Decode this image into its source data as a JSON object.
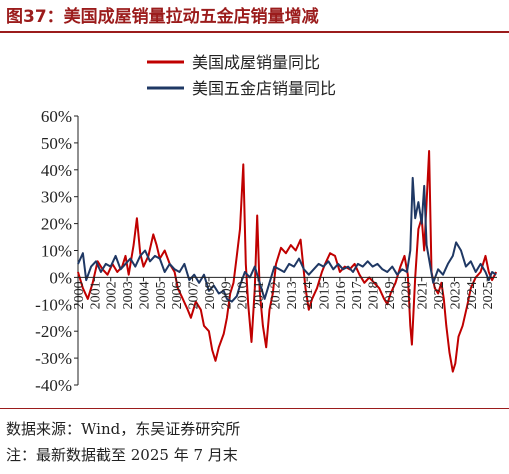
{
  "header": {
    "title": "图37：美国成屋销量拉动五金店销量增减"
  },
  "footer": {
    "source": "数据来源：Wind，东吴证券研究所",
    "note": "注：最新数据截至 2025 年 7 月末"
  },
  "chart_data": {
    "type": "line",
    "title": "图37：美国成屋销量拉动五金店销量增减",
    "xlabel": "",
    "ylabel": "",
    "ylim": [
      -40,
      60
    ],
    "yticks": [
      "60%",
      "50%",
      "40%",
      "30%",
      "20%",
      "10%",
      "0%",
      "-10%",
      "-20%",
      "-30%",
      "-40%"
    ],
    "xlim": [
      2000,
      2025.6
    ],
    "xticks": [
      "2000",
      "2001",
      "2002",
      "2003",
      "2004",
      "2005",
      "2006",
      "2007",
      "2008",
      "2009",
      "2010",
      "2011",
      "2012",
      "2013",
      "2014",
      "2015",
      "2016",
      "2017",
      "2018",
      "2019",
      "2020",
      "2021",
      "2022",
      "2023",
      "2024",
      "2025"
    ],
    "legend_position": "top-center",
    "grid": false,
    "colors": {
      "existing": "#c00000",
      "hardware": "#1f3864"
    },
    "series": [
      {
        "name": "美国成屋销量同比",
        "key": "existing",
        "points": [
          [
            2000.0,
            2
          ],
          [
            2000.3,
            -4
          ],
          [
            2000.6,
            -8
          ],
          [
            2000.9,
            -2
          ],
          [
            2001.2,
            6
          ],
          [
            2001.5,
            3
          ],
          [
            2001.8,
            1
          ],
          [
            2002.1,
            5
          ],
          [
            2002.4,
            2
          ],
          [
            2002.7,
            4
          ],
          [
            2002.9,
            8
          ],
          [
            2003.1,
            1
          ],
          [
            2003.4,
            12
          ],
          [
            2003.6,
            22
          ],
          [
            2003.8,
            9
          ],
          [
            2004.0,
            4
          ],
          [
            2004.3,
            8
          ],
          [
            2004.6,
            16
          ],
          [
            2004.8,
            12
          ],
          [
            2005.0,
            7
          ],
          [
            2005.3,
            10
          ],
          [
            2005.6,
            5
          ],
          [
            2005.9,
            2
          ],
          [
            2006.1,
            -4
          ],
          [
            2006.4,
            -8
          ],
          [
            2006.7,
            -12
          ],
          [
            2006.9,
            -15
          ],
          [
            2007.2,
            -9
          ],
          [
            2007.5,
            -12
          ],
          [
            2007.7,
            -18
          ],
          [
            2008.0,
            -20
          ],
          [
            2008.2,
            -27
          ],
          [
            2008.4,
            -31
          ],
          [
            2008.6,
            -26
          ],
          [
            2008.9,
            -21
          ],
          [
            2009.1,
            -15
          ],
          [
            2009.3,
            -6
          ],
          [
            2009.5,
            -2
          ],
          [
            2009.7,
            8
          ],
          [
            2009.9,
            18
          ],
          [
            2010.1,
            42
          ],
          [
            2010.25,
            5
          ],
          [
            2010.4,
            -10
          ],
          [
            2010.6,
            -24
          ],
          [
            2010.8,
            -4
          ],
          [
            2010.95,
            23
          ],
          [
            2011.1,
            -5
          ],
          [
            2011.3,
            -18
          ],
          [
            2011.5,
            -26
          ],
          [
            2011.7,
            -12
          ],
          [
            2011.9,
            -6
          ],
          [
            2012.1,
            5
          ],
          [
            2012.4,
            11
          ],
          [
            2012.7,
            9
          ],
          [
            2013.0,
            12
          ],
          [
            2013.3,
            10
          ],
          [
            2013.6,
            14
          ],
          [
            2013.9,
            -4
          ],
          [
            2014.1,
            -12
          ],
          [
            2014.3,
            -8
          ],
          [
            2014.6,
            -4
          ],
          [
            2014.9,
            2
          ],
          [
            2015.1,
            5
          ],
          [
            2015.4,
            9
          ],
          [
            2015.7,
            8
          ],
          [
            2016.0,
            2
          ],
          [
            2016.3,
            4
          ],
          [
            2016.6,
            3
          ],
          [
            2016.9,
            5
          ],
          [
            2017.2,
            1
          ],
          [
            2017.5,
            -2
          ],
          [
            2017.8,
            0
          ],
          [
            2018.1,
            -2
          ],
          [
            2018.4,
            -4
          ],
          [
            2018.7,
            -8
          ],
          [
            2018.9,
            -10
          ],
          [
            2019.1,
            -6
          ],
          [
            2019.4,
            -2
          ],
          [
            2019.7,
            4
          ],
          [
            2019.95,
            8
          ],
          [
            2020.15,
            1
          ],
          [
            2020.3,
            -18
          ],
          [
            2020.4,
            -25
          ],
          [
            2020.6,
            0
          ],
          [
            2020.8,
            18
          ],
          [
            2021.0,
            22
          ],
          [
            2021.15,
            10
          ],
          [
            2021.3,
            28
          ],
          [
            2021.45,
            47
          ],
          [
            2021.6,
            2
          ],
          [
            2021.8,
            -4
          ],
          [
            2022.0,
            -6
          ],
          [
            2022.2,
            -2
          ],
          [
            2022.35,
            -8
          ],
          [
            2022.5,
            -18
          ],
          [
            2022.7,
            -28
          ],
          [
            2022.9,
            -35
          ],
          [
            2023.05,
            -32
          ],
          [
            2023.25,
            -22
          ],
          [
            2023.5,
            -18
          ],
          [
            2023.8,
            -10
          ],
          [
            2024.0,
            -4
          ],
          [
            2024.3,
            0
          ],
          [
            2024.6,
            2
          ],
          [
            2024.9,
            8
          ],
          [
            2025.1,
            2
          ],
          [
            2025.3,
            -1
          ],
          [
            2025.55,
            2
          ]
        ]
      },
      {
        "name": "美国五金店销量同比",
        "key": "hardware",
        "points": [
          [
            2000.0,
            5
          ],
          [
            2000.3,
            9
          ],
          [
            2000.5,
            -1
          ],
          [
            2000.8,
            4
          ],
          [
            2001.1,
            6
          ],
          [
            2001.4,
            2
          ],
          [
            2001.7,
            5
          ],
          [
            2002.0,
            4
          ],
          [
            2002.3,
            8
          ],
          [
            2002.6,
            3
          ],
          [
            2002.9,
            5
          ],
          [
            2003.2,
            7
          ],
          [
            2003.5,
            4
          ],
          [
            2003.8,
            8
          ],
          [
            2004.1,
            10
          ],
          [
            2004.4,
            6
          ],
          [
            2004.7,
            8
          ],
          [
            2005.0,
            7
          ],
          [
            2005.3,
            2
          ],
          [
            2005.6,
            5
          ],
          [
            2005.9,
            3
          ],
          [
            2006.2,
            2
          ],
          [
            2006.5,
            5
          ],
          [
            2006.8,
            -1
          ],
          [
            2007.1,
            1
          ],
          [
            2007.4,
            -2
          ],
          [
            2007.7,
            1
          ],
          [
            2008.0,
            -5
          ],
          [
            2008.3,
            -3
          ],
          [
            2008.6,
            -6
          ],
          [
            2008.9,
            -5
          ],
          [
            2009.1,
            -8
          ],
          [
            2009.4,
            -9
          ],
          [
            2009.7,
            -7
          ],
          [
            2009.9,
            -3
          ],
          [
            2010.2,
            2
          ],
          [
            2010.5,
            0
          ],
          [
            2010.8,
            4
          ],
          [
            2011.1,
            -2
          ],
          [
            2011.4,
            -8
          ],
          [
            2011.7,
            -2
          ],
          [
            2012.0,
            4
          ],
          [
            2012.3,
            3
          ],
          [
            2012.6,
            2
          ],
          [
            2012.9,
            5
          ],
          [
            2013.2,
            4
          ],
          [
            2013.5,
            7
          ],
          [
            2013.8,
            3
          ],
          [
            2014.1,
            1
          ],
          [
            2014.4,
            3
          ],
          [
            2014.7,
            5
          ],
          [
            2015.0,
            4
          ],
          [
            2015.3,
            6
          ],
          [
            2015.6,
            3
          ],
          [
            2015.9,
            5
          ],
          [
            2016.2,
            3
          ],
          [
            2016.5,
            4
          ],
          [
            2016.8,
            2
          ],
          [
            2017.1,
            5
          ],
          [
            2017.4,
            4
          ],
          [
            2017.7,
            6
          ],
          [
            2018.0,
            4
          ],
          [
            2018.3,
            5
          ],
          [
            2018.6,
            3
          ],
          [
            2018.9,
            2
          ],
          [
            2019.2,
            4
          ],
          [
            2019.5,
            1
          ],
          [
            2019.8,
            3
          ],
          [
            2020.1,
            2
          ],
          [
            2020.3,
            10
          ],
          [
            2020.45,
            37
          ],
          [
            2020.6,
            22
          ],
          [
            2020.8,
            28
          ],
          [
            2021.0,
            20
          ],
          [
            2021.15,
            34
          ],
          [
            2021.3,
            12
          ],
          [
            2021.5,
            5
          ],
          [
            2021.7,
            -2
          ],
          [
            2022.0,
            3
          ],
          [
            2022.3,
            1
          ],
          [
            2022.6,
            5
          ],
          [
            2022.9,
            8
          ],
          [
            2023.1,
            13
          ],
          [
            2023.4,
            10
          ],
          [
            2023.7,
            4
          ],
          [
            2024.0,
            6
          ],
          [
            2024.3,
            2
          ],
          [
            2024.6,
            5
          ],
          [
            2024.9,
            2
          ],
          [
            2025.1,
            -1
          ],
          [
            2025.3,
            2
          ],
          [
            2025.55,
            1
          ]
        ]
      }
    ]
  }
}
